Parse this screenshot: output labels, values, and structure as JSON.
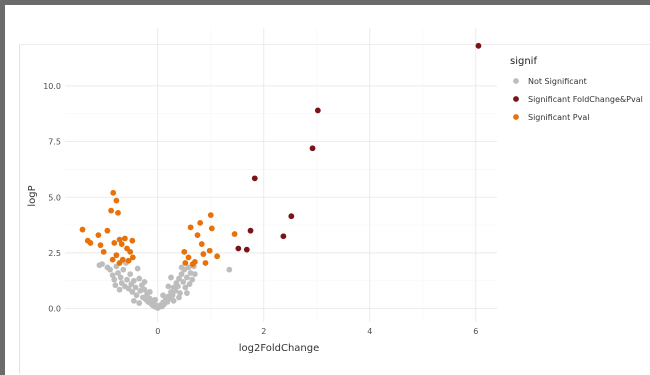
{
  "chart_data": {
    "type": "scatter",
    "xlabel": "log2FoldChange",
    "ylabel": "logP",
    "xlim": [
      -1.75,
      6.4
    ],
    "ylim": [
      -0.6,
      12.6
    ],
    "x_ticks": [
      0,
      2,
      4,
      6
    ],
    "y_ticks": [
      0.0,
      2.5,
      5.0,
      7.5,
      10.0
    ],
    "x_tick_labels": [
      "0",
      "2",
      "4",
      "6"
    ],
    "y_tick_labels": [
      "0.0",
      "2.5",
      "5.0",
      "7.5",
      "10.0"
    ],
    "grid": true,
    "legend": {
      "title": "signif",
      "placement": "right",
      "entries": [
        {
          "label": "Not Significant",
          "color": "#bdbdbd"
        },
        {
          "label": "Significant FoldChange&Pval",
          "color": "#7b1416"
        },
        {
          "label": "Significant Pval",
          "color": "#e8710a"
        }
      ]
    },
    "series": [
      {
        "key": "significant-foldchange-pval",
        "name": "Significant FoldChange&Pval",
        "color": "#7b1416",
        "points": [
          [
            6.05,
            11.8
          ],
          [
            3.02,
            8.9
          ],
          [
            2.92,
            7.2
          ],
          [
            1.83,
            5.85
          ],
          [
            2.52,
            4.15
          ],
          [
            2.37,
            3.25
          ],
          [
            1.75,
            3.5
          ],
          [
            1.68,
            2.65
          ],
          [
            1.52,
            2.7
          ]
        ]
      },
      {
        "key": "significant-pval",
        "name": "Significant Pval",
        "color": "#e8710a",
        "points": [
          [
            -1.42,
            3.55
          ],
          [
            -1.32,
            3.05
          ],
          [
            -1.27,
            2.95
          ],
          [
            -1.12,
            3.3
          ],
          [
            -1.08,
            2.85
          ],
          [
            -1.02,
            2.55
          ],
          [
            -0.95,
            3.5
          ],
          [
            -0.88,
            4.4
          ],
          [
            -0.84,
            5.2
          ],
          [
            -0.78,
            4.85
          ],
          [
            -0.75,
            4.3
          ],
          [
            -0.72,
            3.1
          ],
          [
            -0.68,
            2.9
          ],
          [
            -0.82,
            2.95
          ],
          [
            -0.62,
            3.15
          ],
          [
            -0.58,
            2.7
          ],
          [
            -0.52,
            2.55
          ],
          [
            -0.48,
            3.05
          ],
          [
            -0.78,
            2.4
          ],
          [
            -0.66,
            2.2
          ],
          [
            -0.55,
            2.15
          ],
          [
            -0.72,
            2.05
          ],
          [
            -0.47,
            2.3
          ],
          [
            -0.85,
            2.2
          ],
          [
            0.5,
            2.55
          ],
          [
            0.52,
            2.05
          ],
          [
            0.58,
            2.3
          ],
          [
            0.62,
            3.65
          ],
          [
            0.66,
            2.0
          ],
          [
            0.75,
            3.3
          ],
          [
            0.8,
            3.85
          ],
          [
            0.83,
            2.9
          ],
          [
            0.86,
            2.45
          ],
          [
            0.9,
            2.05
          ],
          [
            1.0,
            4.2
          ],
          [
            1.02,
            3.6
          ],
          [
            0.98,
            2.6
          ],
          [
            1.12,
            2.35
          ],
          [
            1.45,
            3.35
          ],
          [
            0.7,
            2.1
          ]
        ]
      },
      {
        "key": "not-significant",
        "name": "Not Significant",
        "color": "#bdbdbd",
        "points": [
          [
            -1.05,
            2.0
          ],
          [
            -0.95,
            1.85
          ],
          [
            -0.9,
            1.75
          ],
          [
            -0.85,
            1.5
          ],
          [
            -0.82,
            1.3
          ],
          [
            -0.78,
            1.9
          ],
          [
            -0.75,
            1.6
          ],
          [
            -0.7,
            1.4
          ],
          [
            -0.68,
            1.15
          ],
          [
            -0.65,
            1.75
          ],
          [
            -0.62,
            1.0
          ],
          [
            -0.58,
            1.3
          ],
          [
            -0.55,
            0.9
          ],
          [
            -0.52,
            1.55
          ],
          [
            -0.5,
            1.1
          ],
          [
            -0.48,
            0.75
          ],
          [
            -0.45,
            1.25
          ],
          [
            -0.42,
            0.95
          ],
          [
            -0.4,
            0.6
          ],
          [
            -0.38,
            1.8
          ],
          [
            -0.35,
            1.35
          ],
          [
            -0.33,
            0.8
          ],
          [
            -0.3,
            1.05
          ],
          [
            -0.28,
            0.5
          ],
          [
            -0.25,
            0.85
          ],
          [
            -0.22,
            0.4
          ],
          [
            -0.2,
            0.65
          ],
          [
            -0.18,
            0.3
          ],
          [
            -0.15,
            0.45
          ],
          [
            -0.12,
            0.2
          ],
          [
            -0.1,
            0.3
          ],
          [
            -0.08,
            0.12
          ],
          [
            -0.05,
            0.18
          ],
          [
            -0.03,
            0.06
          ],
          [
            0.0,
            0.03
          ],
          [
            0.03,
            0.08
          ],
          [
            0.05,
            0.15
          ],
          [
            0.08,
            0.1
          ],
          [
            0.1,
            0.28
          ],
          [
            0.12,
            0.2
          ],
          [
            0.15,
            0.4
          ],
          [
            0.18,
            0.3
          ],
          [
            0.2,
            0.55
          ],
          [
            0.22,
            0.45
          ],
          [
            0.25,
            0.75
          ],
          [
            0.28,
            0.6
          ],
          [
            0.3,
            0.95
          ],
          [
            0.33,
            0.8
          ],
          [
            0.35,
            1.15
          ],
          [
            0.38,
            1.0
          ],
          [
            0.4,
            1.35
          ],
          [
            0.42,
            0.7
          ],
          [
            0.45,
            1.55
          ],
          [
            0.48,
            1.2
          ],
          [
            0.5,
            1.75
          ],
          [
            0.52,
            0.95
          ],
          [
            0.55,
            1.4
          ],
          [
            0.58,
            1.85
          ],
          [
            0.6,
            1.1
          ],
          [
            0.62,
            1.6
          ],
          [
            0.65,
            1.3
          ],
          [
            0.68,
            1.9
          ],
          [
            0.7,
            1.55
          ],
          [
            0.45,
            1.85
          ],
          [
            0.4,
            0.5
          ],
          [
            -0.6,
            2.05
          ],
          [
            -1.1,
            1.95
          ],
          [
            -0.72,
            0.85
          ],
          [
            -0.45,
            0.35
          ],
          [
            0.3,
            0.35
          ],
          [
            0.55,
            0.7
          ],
          [
            1.35,
            1.75
          ],
          [
            -0.25,
            1.2
          ],
          [
            -0.35,
            0.25
          ],
          [
            0.2,
            1.0
          ],
          [
            -0.15,
            0.75
          ],
          [
            0.1,
            0.6
          ],
          [
            -0.05,
            0.4
          ],
          [
            0.25,
            1.4
          ],
          [
            -0.8,
            1.05
          ]
        ]
      }
    ]
  }
}
